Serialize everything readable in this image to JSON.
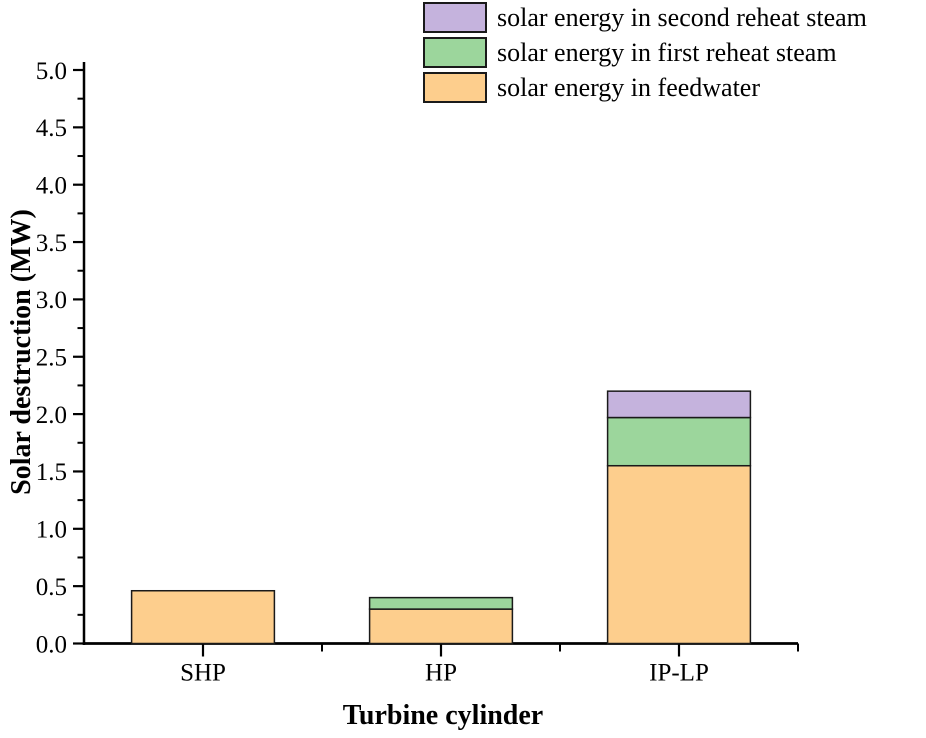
{
  "figure": {
    "background": "#FFFFFF",
    "text_color": "#000000",
    "axis_color": "#000000",
    "bar_border_color": "#1A1A1A"
  },
  "chart_data": {
    "type": "bar",
    "stacked": true,
    "title": "",
    "xlabel": "Turbine cylinder",
    "ylabel": "Solar destruction (MW)",
    "categories": [
      "SHP",
      "HP",
      "IP-LP"
    ],
    "series": [
      {
        "name": "solar energy in feedwater",
        "color": "#FDCE8D",
        "values": [
          0.46,
          0.3,
          1.55
        ]
      },
      {
        "name": "solar energy in first reheat steam",
        "color": "#9CD69C",
        "values": [
          0.0,
          0.1,
          0.42
        ]
      },
      {
        "name": "solar energy in second reheat steam",
        "color": "#C5B3DD",
        "values": [
          0.0,
          0.0,
          0.23
        ]
      }
    ],
    "ylim": [
      0.0,
      5.0
    ],
    "y_major_step": 0.5,
    "y_minor_step": 0.25,
    "y_tick_labels": [
      "0.0",
      "0.5",
      "1.0",
      "1.5",
      "2.0",
      "2.5",
      "3.0",
      "3.5",
      "4.0",
      "4.5",
      "5.0"
    ],
    "grid": false,
    "legend_position": "top-center",
    "legend_order_top_to_bottom": [
      "solar energy in second reheat steam",
      "solar energy in first reheat steam",
      "solar energy in feedwater"
    ],
    "bar_width_fraction": 0.6
  }
}
